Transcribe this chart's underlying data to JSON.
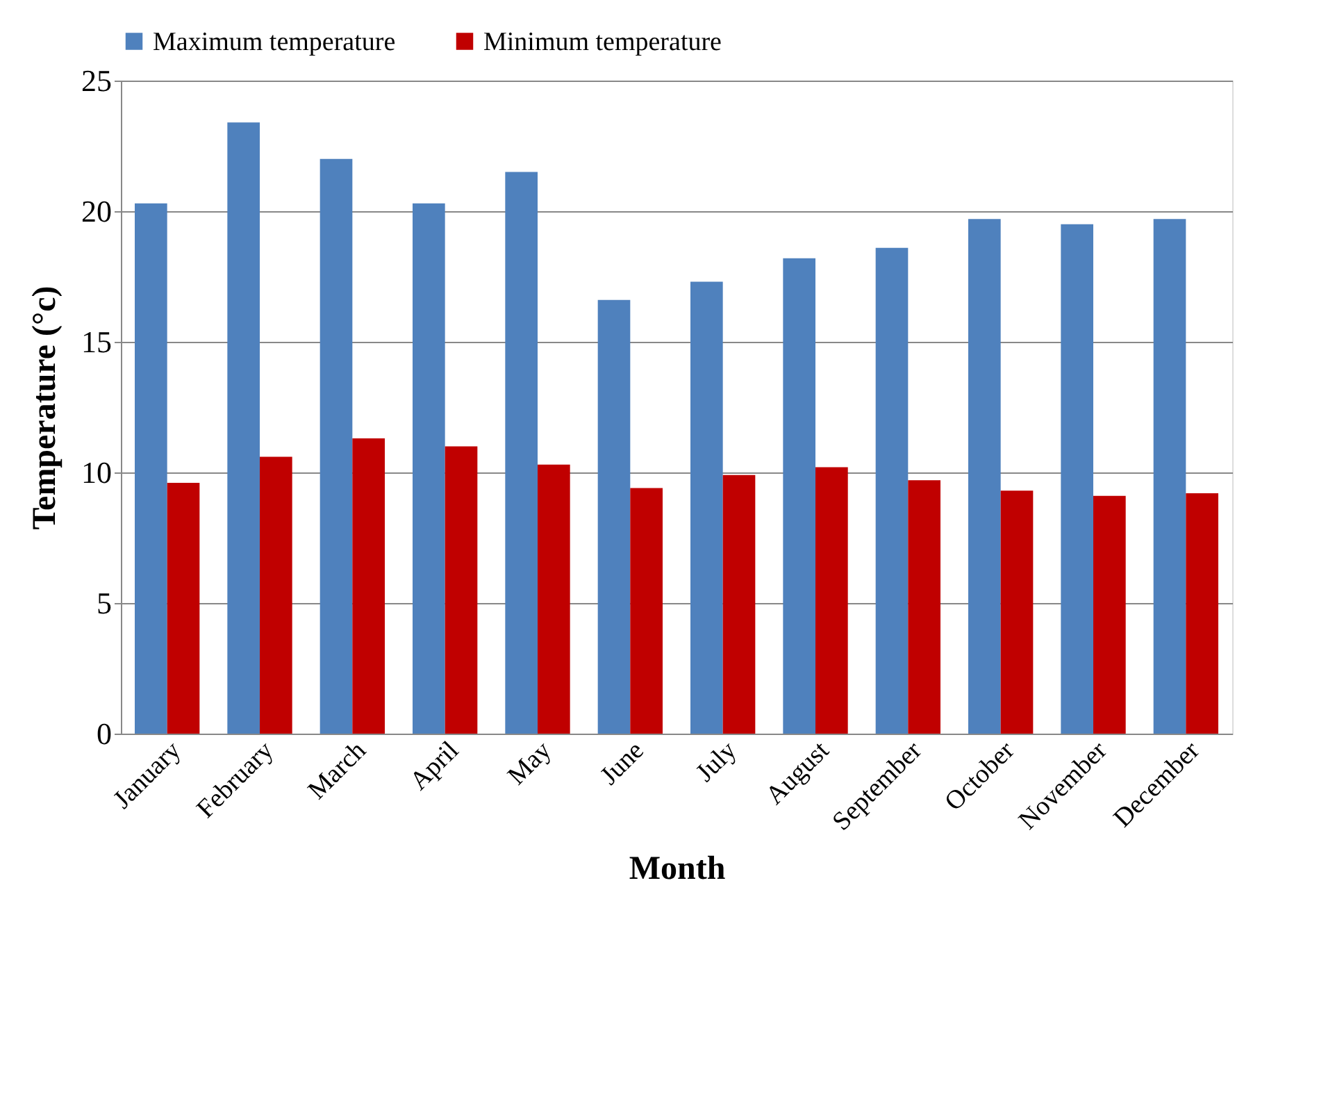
{
  "chart_data": {
    "type": "bar",
    "xlabel": "Month",
    "ylabel": "Temperature (°c)",
    "categories": [
      "January",
      "February",
      "March",
      "April",
      "May",
      "June",
      "July",
      "August",
      "September",
      "October",
      "November",
      "December"
    ],
    "series": [
      {
        "name": "Maximum temperature",
        "color": "#4f81bd",
        "values": [
          20.3,
          23.4,
          22.0,
          20.3,
          21.5,
          16.6,
          17.3,
          18.2,
          18.6,
          19.7,
          19.5,
          19.7
        ]
      },
      {
        "name": "Minimum temperature",
        "color": "#c00000",
        "values": [
          9.6,
          10.6,
          11.3,
          11.0,
          10.3,
          9.4,
          9.9,
          10.2,
          9.7,
          9.3,
          9.1,
          9.2
        ]
      }
    ],
    "ylim": [
      0,
      25
    ],
    "yticks": [
      0,
      5,
      10,
      15,
      20,
      25
    ],
    "grid": "y",
    "legend": "top"
  }
}
